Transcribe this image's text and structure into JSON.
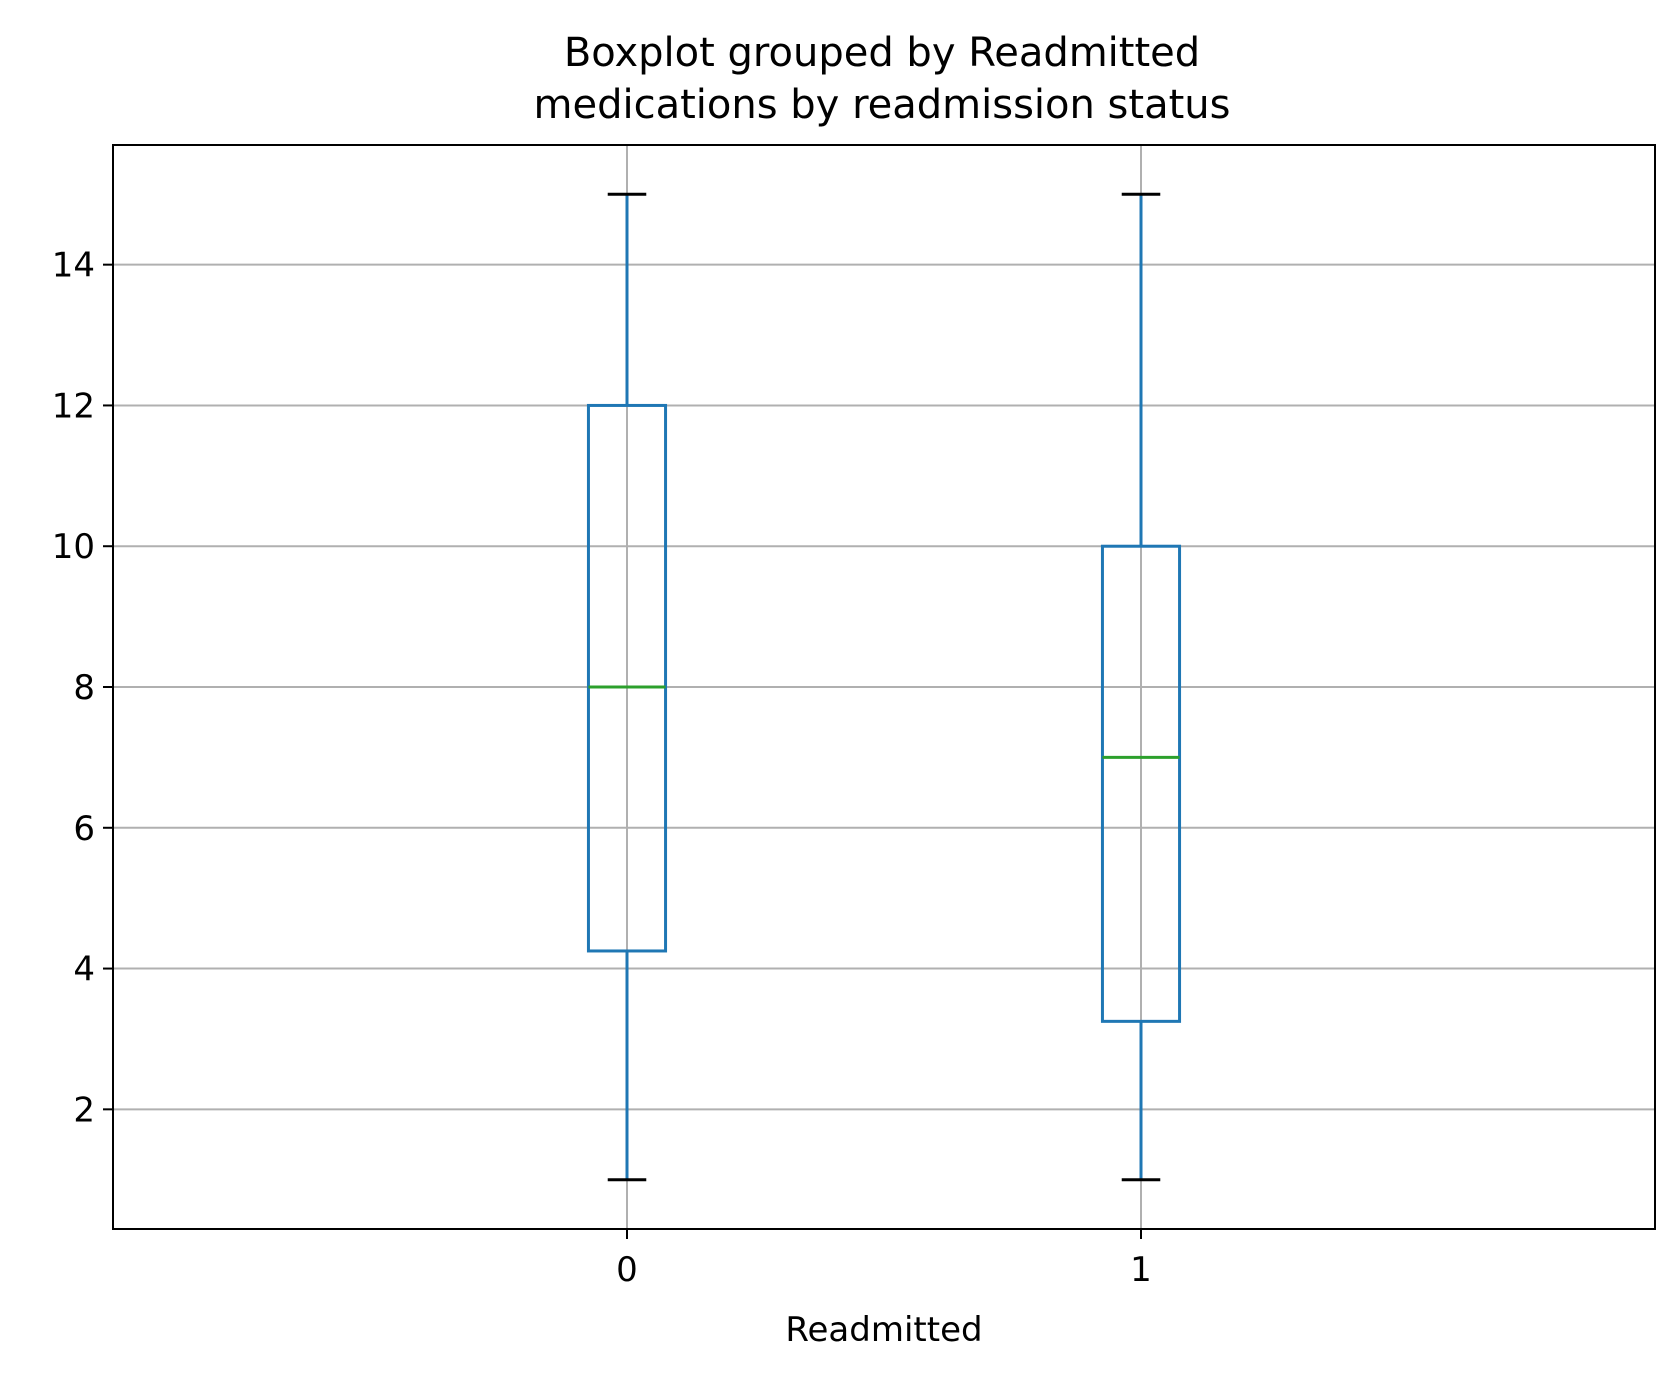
{
  "chart_data": {
    "type": "box",
    "title": "Boxplot grouped by Readmitted",
    "subtitle": "medications by readmission status",
    "xlabel": "Readmitted",
    "ylabel": "",
    "ylim": [
      0.3,
      15.7
    ],
    "yticks": [
      2,
      4,
      6,
      8,
      10,
      12,
      14
    ],
    "grid": true,
    "categories": [
      "0",
      "1"
    ],
    "boxes": [
      {
        "category": "0",
        "whisker_low": 1,
        "q1": 4.25,
        "median": 8,
        "q3": 12,
        "whisker_high": 15
      },
      {
        "category": "1",
        "whisker_low": 1,
        "q1": 3.25,
        "median": 7,
        "q3": 10,
        "whisker_high": 15
      }
    ],
    "colors": {
      "box": "#1f77b4",
      "median": "#2ca02c",
      "cap": "#000000",
      "grid": "#b0b0b0"
    }
  }
}
